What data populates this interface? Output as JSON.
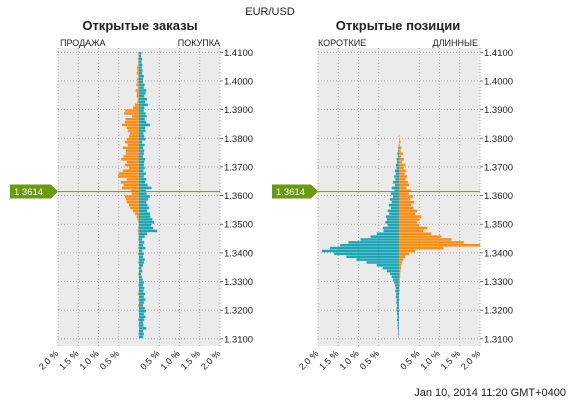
{
  "header": {
    "symbol": "EUR/USD",
    "timestamp": "Jan 10, 2014 11:20 GMT+0400"
  },
  "colors": {
    "sell": "#fb8c14",
    "buy": "#1aa6b7",
    "price_line": "#7fa619",
    "price_tag": "#6a9a10",
    "plot_bg": "#ebebeb",
    "grid": "#9a9a9a"
  },
  "chart_data": [
    {
      "type": "bar",
      "orientation": "horizontal-butterfly",
      "title": "Открытые заказы",
      "left_label": "ПРОДАЖА",
      "right_label": "ПОКУПКА",
      "y_ticks": [
        "1.4100",
        "1.4000",
        "1.3900",
        "1.3800",
        "1.3700",
        "1.3600",
        "1.3500",
        "1.3400",
        "1.3300",
        "1.3200",
        "1.3100"
      ],
      "ylim": [
        1.3075,
        1.4115
      ],
      "x_ticks": [
        "2.0 %",
        "1.5 %",
        "1.0 %",
        "0.5 %",
        "0.5 %",
        "1.0 %",
        "1.5 %",
        "2.0 %"
      ],
      "xlim": [
        -2.0,
        2.0
      ],
      "current_price": "1.3614",
      "price_band_step": 0.001,
      "bands_top_price": 1.4096,
      "buy_pct": [
        0.06,
        0.05,
        0.08,
        0.06,
        0.08,
        0.07,
        0.09,
        0.08,
        0.12,
        0.1,
        0.1,
        0.14,
        0.12,
        0.18,
        0.16,
        0.13,
        0.2,
        0.15,
        0.22,
        0.13,
        0.12,
        0.16,
        0.19,
        0.14,
        0.18,
        0.27,
        0.15,
        0.16,
        0.11,
        0.13,
        0.16,
        0.08,
        0.14,
        0.1,
        0.13,
        0.12,
        0.1,
        0.15,
        0.13,
        0.12,
        0.14,
        0.11,
        0.17,
        0.12,
        0.18,
        0.15,
        0.21,
        0.31,
        0.17,
        0.19,
        0.27,
        0.22,
        0.18,
        0.21,
        0.25,
        0.2,
        0.27,
        0.28,
        0.33,
        0.37,
        0.3,
        0.35,
        0.45,
        0.2,
        0.14,
        0.08,
        0.13,
        0.1,
        0.16,
        0.08,
        0.12,
        0.1,
        0.14,
        0.12,
        0.1,
        0.06,
        0.08,
        0.05,
        0.07,
        0.09,
        0.12,
        0.1,
        0.13,
        0.11,
        0.15,
        0.12,
        0.16,
        0.12,
        0.1,
        0.14,
        0.17,
        0.12,
        0.16,
        0.13,
        0.1,
        0.11,
        0.18,
        0.1,
        0.12,
        0.1
      ],
      "sell_pct": [
        0.02,
        0.01,
        0.03,
        0.02,
        0.02,
        0.05,
        0.04,
        0.06,
        0.02,
        0.05,
        0.04,
        0.07,
        0.03,
        0.08,
        0.05,
        0.06,
        0.03,
        0.04,
        0.1,
        0.15,
        0.34,
        0.37,
        0.17,
        0.33,
        0.35,
        0.42,
        0.3,
        0.28,
        0.22,
        0.25,
        0.3,
        0.35,
        0.28,
        0.4,
        0.32,
        0.33,
        0.38,
        0.44,
        0.3,
        0.35,
        0.25,
        0.4,
        0.5,
        0.52,
        0.3,
        0.45,
        0.38,
        0.42,
        0.2,
        0.18,
        0.35,
        0.32,
        0.3,
        0.25,
        0.22,
        0.15,
        0.1,
        0.06,
        0.04,
        0.02,
        0.01,
        0.02,
        0.03,
        0.02,
        0.01,
        0.02,
        0.0,
        0.01,
        0.02,
        0.0,
        0.03,
        0.0,
        0.01,
        0.02,
        0.0,
        0.01,
        0.0,
        0.02,
        0.01,
        0.0,
        0.0,
        0.02,
        0.0,
        0.01,
        0.03,
        0.0,
        0.01,
        0.0,
        0.02,
        0.0,
        0.01,
        0.0,
        0.0,
        0.02,
        0.0,
        0.01,
        0.0,
        0.0,
        0.01,
        0.0
      ]
    },
    {
      "type": "bar",
      "orientation": "horizontal-butterfly",
      "title": "Открытые позиции",
      "left_label": "КОРОТКИЕ",
      "right_label": "ДЛИННЫЕ",
      "y_ticks": [
        "1.4100",
        "1.4000",
        "1.3900",
        "1.3800",
        "1.3700",
        "1.3600",
        "1.3500",
        "1.3400",
        "1.3300",
        "1.3200",
        "1.3100"
      ],
      "ylim": [
        1.3075,
        1.4115
      ],
      "x_ticks": [
        "2.0 %",
        "1.5 %",
        "1.0 %",
        "0.5 %",
        "0.5 %",
        "1.0 %",
        "1.5 %",
        "2.0 %"
      ],
      "xlim": [
        -2.0,
        2.0
      ],
      "current_price": "1.3614",
      "price_band_step": 0.001,
      "bands_top_price": 1.4096,
      "long_pct": [
        0.0,
        0.0,
        0.0,
        0.0,
        0.0,
        0.0,
        0.0,
        0.0,
        0.0,
        0.0,
        0.0,
        0.0,
        0.0,
        0.0,
        0.0,
        0.0,
        0.0,
        0.0,
        0.0,
        0.0,
        0.0,
        0.0,
        0.0,
        0.0,
        0.0,
        0.0,
        0.0,
        0.0,
        0.0,
        0.01,
        0.02,
        0.04,
        0.02,
        0.06,
        0.04,
        0.1,
        0.05,
        0.12,
        0.08,
        0.16,
        0.12,
        0.18,
        0.14,
        0.2,
        0.16,
        0.22,
        0.25,
        0.18,
        0.3,
        0.24,
        0.34,
        0.28,
        0.38,
        0.3,
        0.36,
        0.45,
        0.4,
        0.55,
        0.5,
        0.45,
        0.5,
        0.7,
        0.6,
        0.8,
        1.05,
        1.3,
        1.6,
        2.0,
        1.1,
        0.4,
        0.25,
        0.15,
        0.1,
        0.08,
        0.06,
        0.05,
        0.04,
        0.03,
        0.03,
        0.02,
        0.02,
        0.02,
        0.01,
        0.01,
        0.01,
        0.0,
        0.01,
        0.0,
        0.0,
        0.0,
        0.0,
        0.0,
        0.0,
        0.0,
        0.0,
        0.0,
        0.0,
        0.0,
        0.0,
        0.0
      ],
      "short_pct": [
        0.0,
        0.0,
        0.0,
        0.0,
        0.0,
        0.0,
        0.0,
        0.0,
        0.0,
        0.0,
        0.0,
        0.0,
        0.0,
        0.0,
        0.0,
        0.0,
        0.0,
        0.0,
        0.0,
        0.0,
        0.0,
        0.0,
        0.0,
        0.0,
        0.0,
        0.0,
        0.0,
        0.0,
        0.0,
        0.0,
        0.0,
        0.0,
        0.01,
        0.02,
        0.02,
        0.04,
        0.03,
        0.06,
        0.05,
        0.08,
        0.06,
        0.1,
        0.08,
        0.12,
        0.09,
        0.15,
        0.1,
        0.18,
        0.12,
        0.2,
        0.15,
        0.22,
        0.18,
        0.25,
        0.2,
        0.28,
        0.24,
        0.32,
        0.3,
        0.34,
        0.28,
        0.4,
        0.38,
        0.55,
        0.7,
        0.95,
        1.25,
        1.45,
        1.7,
        1.9,
        1.6,
        1.3,
        1.05,
        0.8,
        0.55,
        0.4,
        0.3,
        0.22,
        0.18,
        0.15,
        0.12,
        0.1,
        0.08,
        0.09,
        0.07,
        0.08,
        0.06,
        0.07,
        0.05,
        0.06,
        0.05,
        0.05,
        0.04,
        0.05,
        0.03,
        0.04,
        0.03,
        0.02,
        0.02,
        0.01
      ]
    }
  ]
}
